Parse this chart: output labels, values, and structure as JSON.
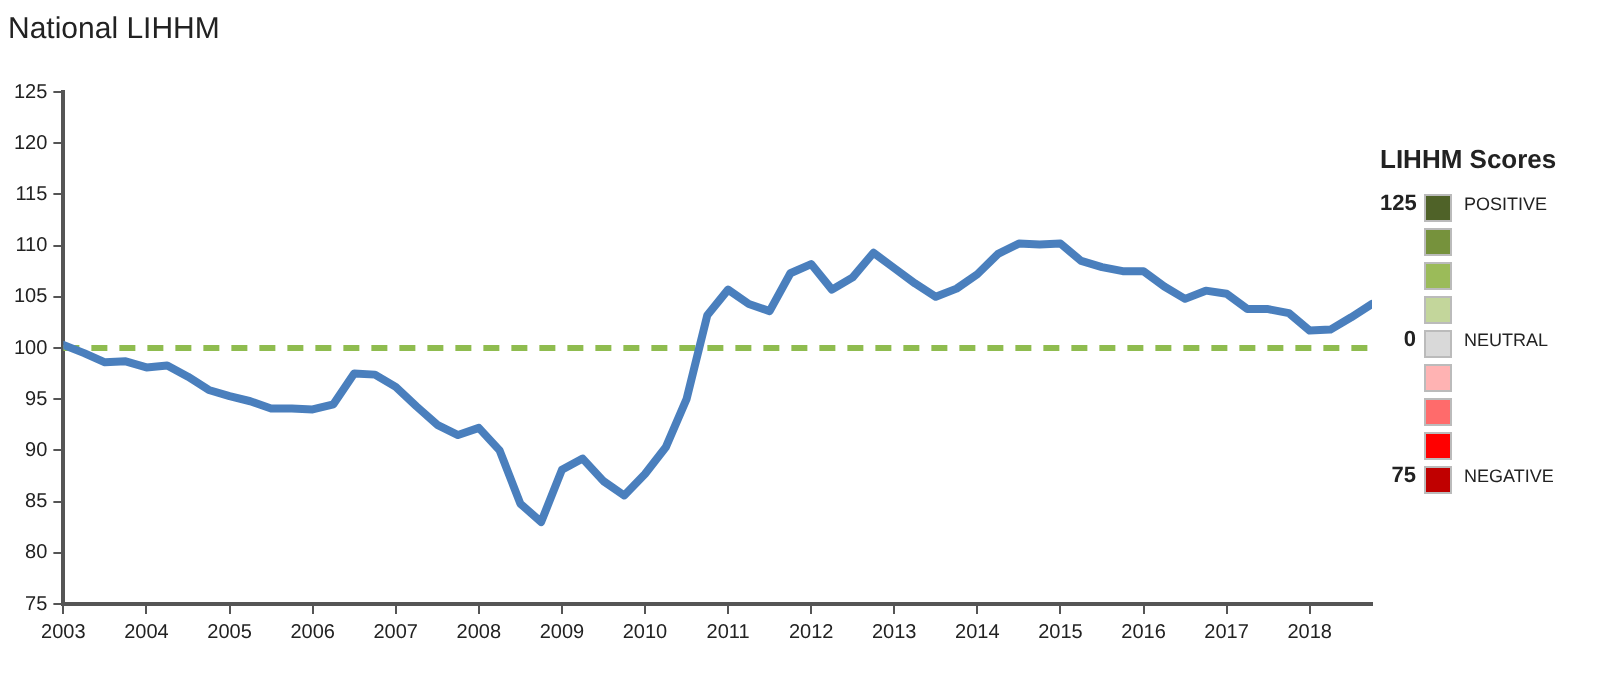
{
  "chart_data": {
    "type": "line",
    "title": "National LIHHM",
    "legend_title": "LIHHM Scores",
    "annotations": [
      "125",
      "POSITIVE",
      "0",
      "NEUTRAL",
      "75",
      "NEGATIVE"
    ],
    "x": [
      2003,
      2003.25,
      2003.5,
      2003.75,
      2004,
      2004.25,
      2004.5,
      2004.75,
      2005,
      2005.25,
      2005.5,
      2005.75,
      2006,
      2006.25,
      2006.5,
      2006.75,
      2007,
      2007.25,
      2007.5,
      2007.75,
      2008,
      2008.25,
      2008.5,
      2008.75,
      2009,
      2009.25,
      2009.5,
      2009.75,
      2010,
      2010.25,
      2010.5,
      2010.75,
      2011,
      2011.25,
      2011.5,
      2011.75,
      2012,
      2012.25,
      2012.5,
      2012.75,
      2013,
      2013.25,
      2013.5,
      2013.75,
      2014,
      2014.25,
      2014.5,
      2014.75,
      2015,
      2015.25,
      2015.5,
      2015.75,
      2016,
      2016.25,
      2016.5,
      2016.75,
      2017,
      2017.25,
      2017.5,
      2017.75,
      2018,
      2018.25,
      2018.5,
      2018.75
    ],
    "series": [
      {
        "color": "#4a7fbd",
        "values": [
          100.3,
          99.5,
          98.6,
          98.7,
          98.1,
          98.3,
          97.2,
          95.9,
          95.3,
          94.8,
          94.1,
          94.1,
          94.0,
          94.5,
          97.5,
          97.4,
          96.2,
          94.3,
          92.5,
          91.5,
          92.2,
          90.0,
          84.8,
          83.0,
          88.1,
          89.2,
          87.0,
          85.6,
          87.7,
          90.3,
          95.0,
          103.2,
          105.7,
          104.3,
          103.6,
          107.3,
          108.2,
          105.7,
          106.9,
          109.3,
          107.8,
          106.3,
          105.0,
          105.8,
          107.2,
          109.2,
          110.2,
          110.1,
          110.2,
          108.5,
          107.9,
          107.5,
          107.5,
          106.0,
          104.8,
          105.6,
          105.3,
          103.8,
          103.8,
          103.4,
          101.7,
          101.8,
          103.0,
          104.3
        ]
      }
    ],
    "xlim": [
      2003,
      2018.75
    ],
    "xticks": [
      2003,
      2004,
      2005,
      2006,
      2007,
      2008,
      2009,
      2010,
      2011,
      2012,
      2013,
      2014,
      2015,
      2016,
      2017,
      2018
    ],
    "ylim": [
      75,
      125
    ],
    "yticks": [
      75,
      80,
      85,
      90,
      95,
      100,
      105,
      110,
      115,
      120,
      125
    ],
    "ref_lines": [
      {
        "axis": "y",
        "value": 100,
        "color": "#8fbc4f",
        "line_style": "dashed"
      }
    ],
    "grid": false,
    "legend": false,
    "marker": "none",
    "line_style": "solid"
  }
}
